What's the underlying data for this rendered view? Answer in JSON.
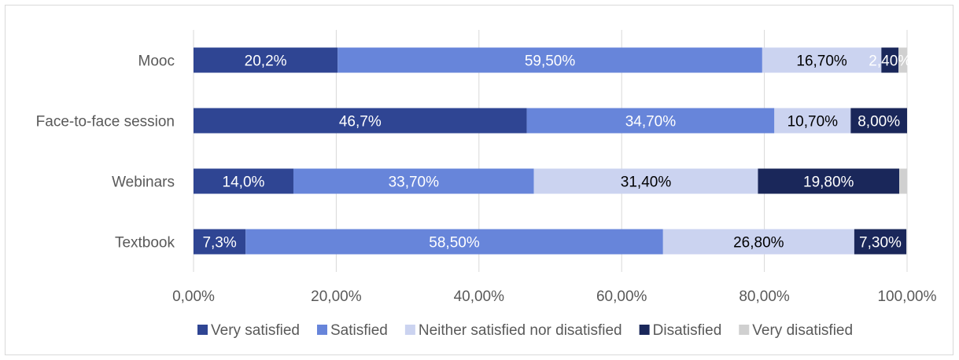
{
  "chart_data": {
    "type": "bar",
    "orientation": "horizontal",
    "stacked": true,
    "title": "",
    "xlabel": "",
    "ylabel": "",
    "xlim": [
      0,
      100
    ],
    "grid": "vertical",
    "legend_position": "bottom",
    "x_ticks": [
      "0,00%",
      "20,00%",
      "40,00%",
      "60,00%",
      "80,00%",
      "100,00%"
    ],
    "x_tick_values": [
      0,
      20,
      40,
      60,
      80,
      100
    ],
    "categories": [
      "Mooc",
      "Face-to-face session",
      "Webinars",
      "Textbook"
    ],
    "series": [
      {
        "name": "Very satisfied",
        "color": "#2f4593",
        "label_color": "#ffffff",
        "values": [
          20.2,
          46.7,
          14.0,
          7.3
        ],
        "labels": [
          "20,2%",
          "46,7%",
          "14,0%",
          "7,3%"
        ]
      },
      {
        "name": "Satisfied",
        "color": "#6785da",
        "label_color": "#ffffff",
        "values": [
          59.5,
          34.7,
          33.7,
          58.5
        ],
        "labels": [
          "59,50%",
          "34,70%",
          "33,70%",
          "58,50%"
        ]
      },
      {
        "name": "Neither satisfied nor disatisfied",
        "color": "#cbd3f0",
        "label_color": "#000000",
        "values": [
          16.7,
          10.7,
          31.4,
          26.8
        ],
        "labels": [
          "16,70%",
          "10,70%",
          "31,40%",
          "26,80%"
        ]
      },
      {
        "name": "Disatisfied",
        "color": "#1a275a",
        "label_color": "#ffffff",
        "values": [
          2.4,
          8.0,
          19.8,
          7.3
        ],
        "labels": [
          "2,40%",
          "8,00%",
          "19,80%",
          "7,30%"
        ]
      },
      {
        "name": "Very disatisfied",
        "color": "#d0d0d0",
        "label_color": "#ffffff",
        "values": [
          1.2,
          0.0,
          1.1,
          0.0
        ],
        "labels": [
          "",
          "",
          "",
          ""
        ]
      }
    ]
  }
}
